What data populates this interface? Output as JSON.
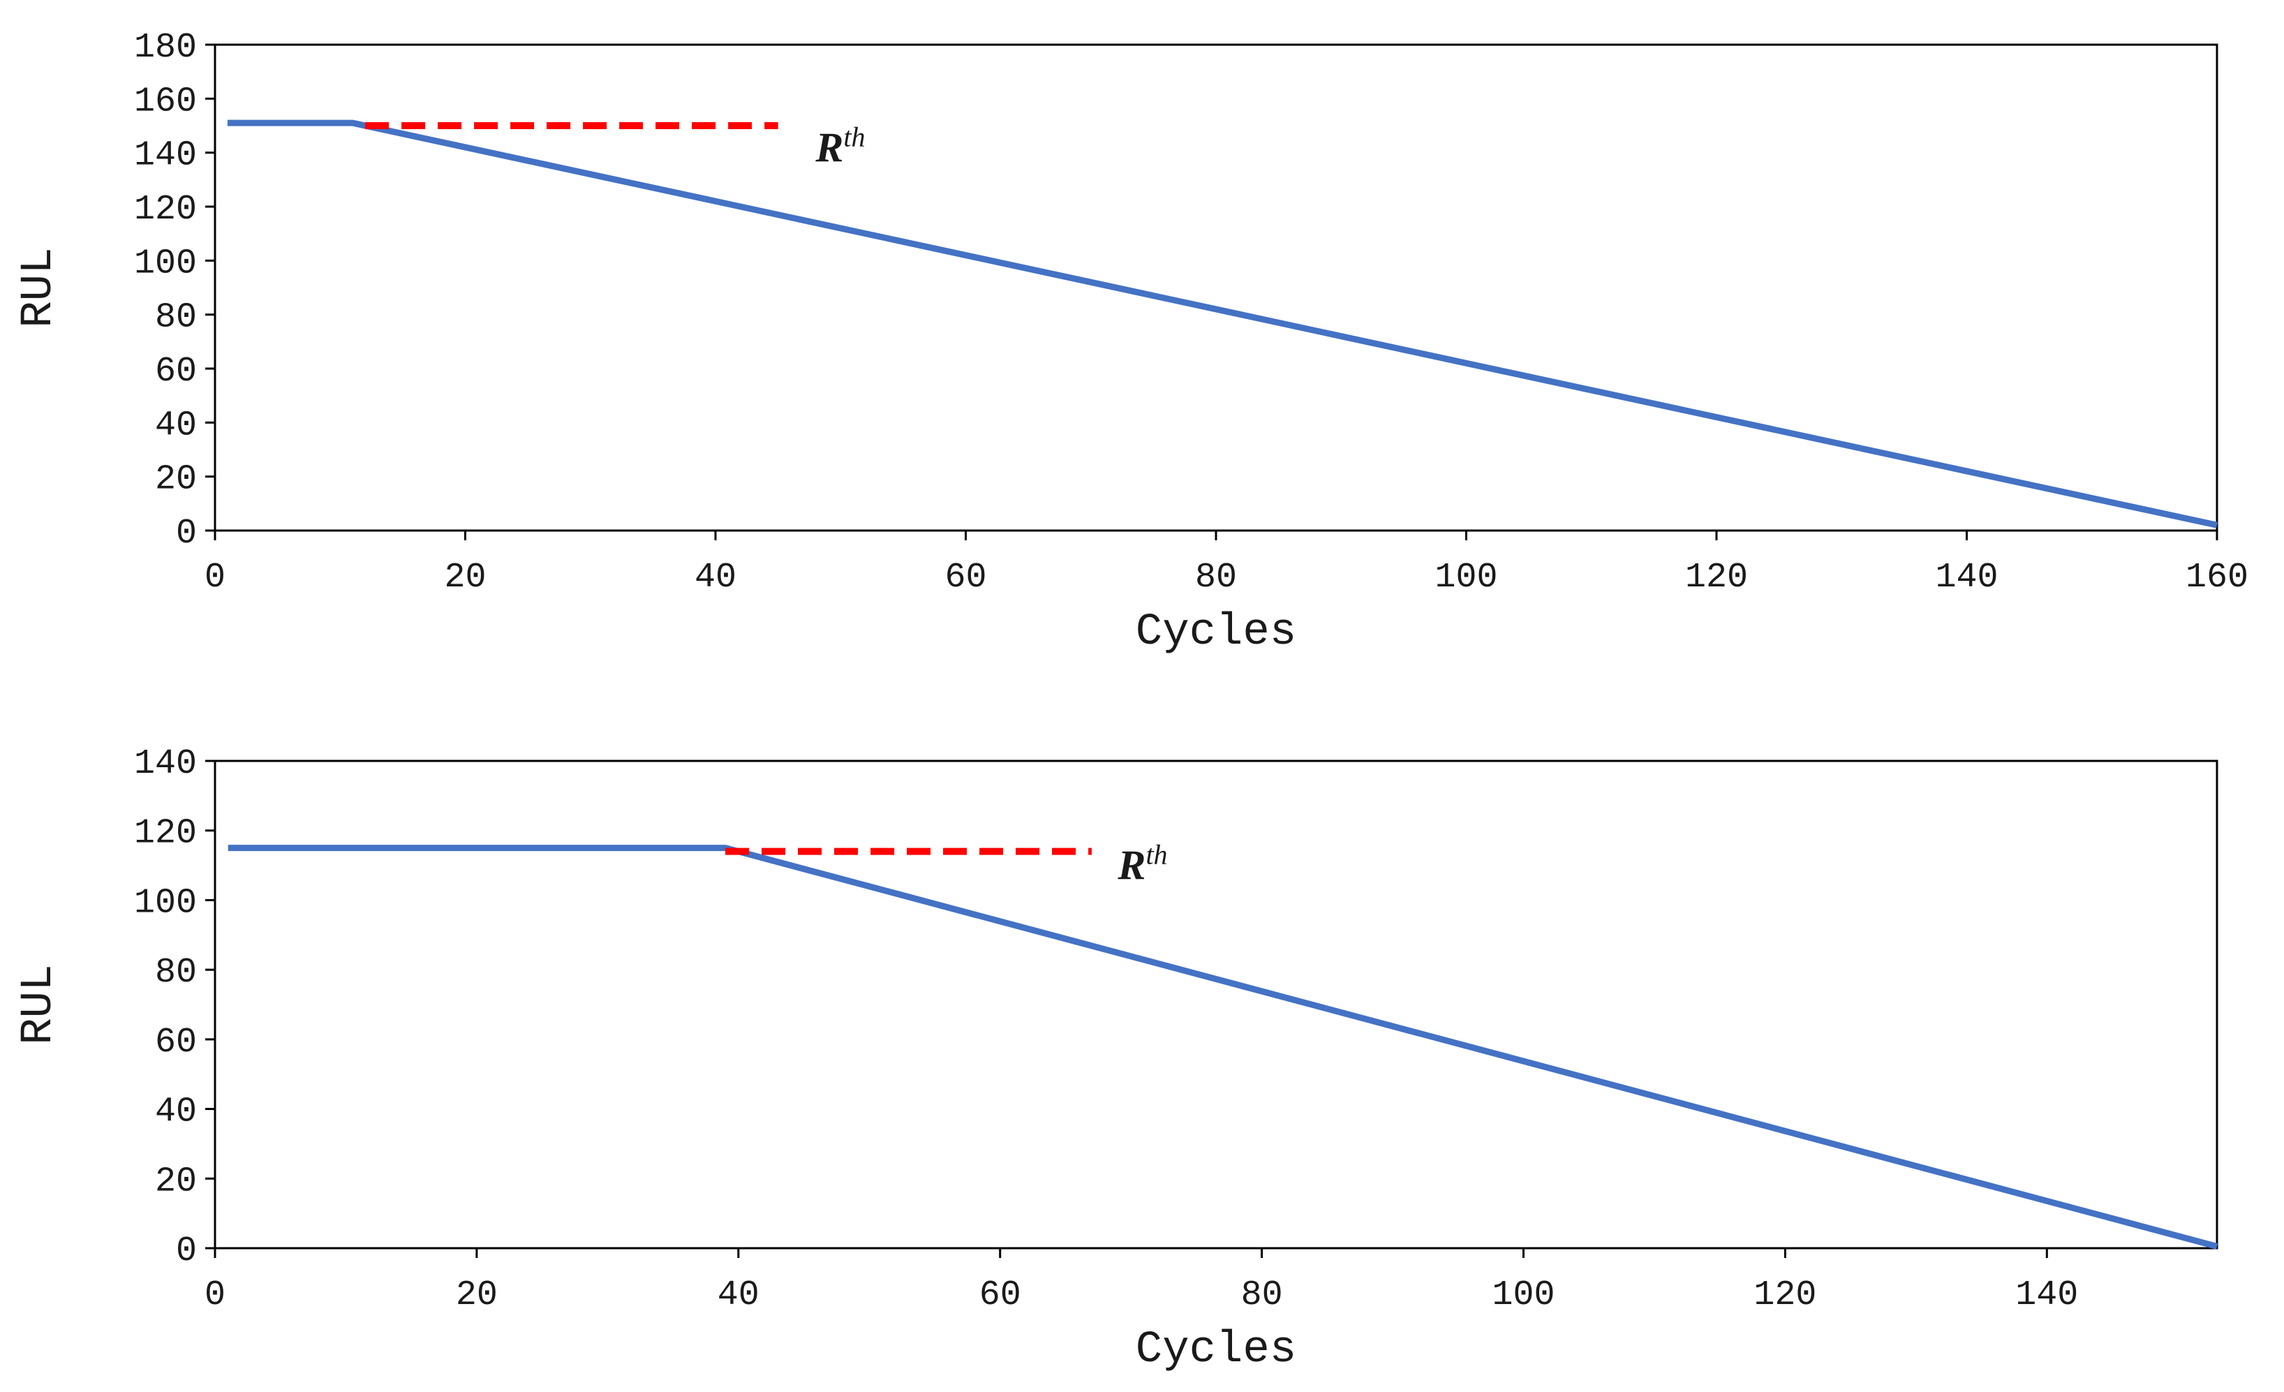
{
  "chart_data": [
    {
      "type": "line",
      "title": "",
      "xlabel": "Cycles",
      "ylabel": "RUL",
      "xlim": [
        0,
        160
      ],
      "ylim": [
        0,
        180
      ],
      "xticks": [
        0,
        20,
        40,
        60,
        80,
        100,
        120,
        140,
        160
      ],
      "yticks": [
        0,
        20,
        40,
        60,
        80,
        100,
        120,
        140,
        160,
        180
      ],
      "grid": false,
      "series": [
        {
          "name": "RUL",
          "color": "#4472C4",
          "style": "solid",
          "x": [
            1,
            11,
            160
          ],
          "y": [
            151,
            151,
            2
          ]
        },
        {
          "name": "threshold",
          "color": "#FF0000",
          "style": "dashed",
          "x": [
            12,
            45
          ],
          "y": [
            150,
            150
          ]
        }
      ],
      "annotation": {
        "text": "R",
        "superscript": "th",
        "x": 48,
        "y": 147
      }
    },
    {
      "type": "line",
      "title": "",
      "xlabel": "Cycles",
      "ylabel": "RUL",
      "xlim": [
        0,
        153
      ],
      "ylim": [
        0,
        140
      ],
      "xticks": [
        0,
        20,
        40,
        60,
        80,
        100,
        120,
        140
      ],
      "yticks": [
        0,
        20,
        40,
        60,
        80,
        100,
        120,
        140
      ],
      "grid": false,
      "series": [
        {
          "name": "RUL",
          "color": "#4472C4",
          "style": "solid",
          "x": [
            1,
            39,
            153
          ],
          "y": [
            115,
            115,
            0.5
          ]
        },
        {
          "name": "threshold",
          "color": "#FF0000",
          "style": "dashed",
          "x": [
            39,
            67
          ],
          "y": [
            114,
            114
          ]
        }
      ],
      "annotation": {
        "text": "R",
        "superscript": "th",
        "x": 69,
        "y": 114
      }
    }
  ]
}
